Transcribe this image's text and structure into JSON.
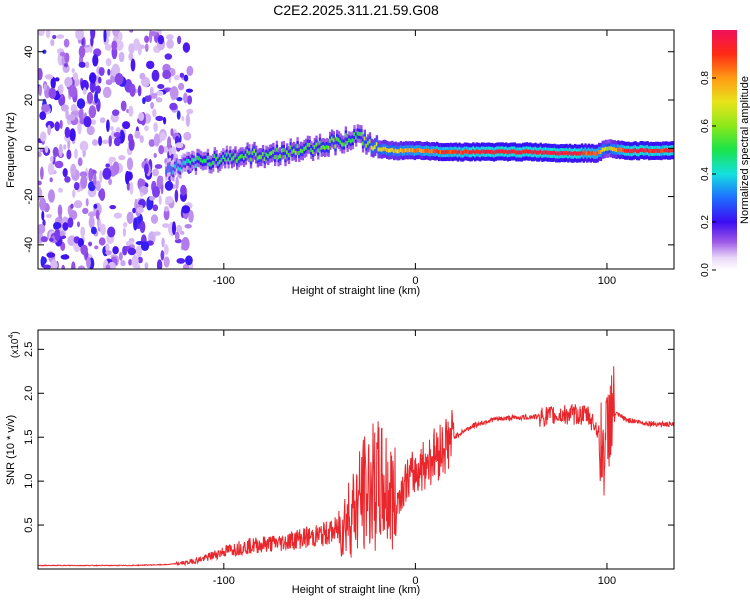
{
  "title": "C2E2.2025.311.21.59.G08",
  "colors": {
    "axis": "#000000",
    "snr_line": "#e8262b",
    "background": "#ffffff"
  },
  "chart_data": [
    {
      "type": "heatmap",
      "name": "spectrogram",
      "xlabel": "Height of straight line (km)",
      "ylabel": "Frequency (Hz)",
      "xlim": [
        -197,
        135
      ],
      "ylim": [
        -50,
        49
      ],
      "xticks": [
        -100,
        0,
        100
      ],
      "yticks": [
        -40,
        -20,
        0,
        20,
        40
      ],
      "colorbar": {
        "label": "Normalized spectral amplitude",
        "range": [
          0.0,
          1.0
        ],
        "ticks": [
          0.0,
          0.2,
          0.4,
          0.6,
          0.8
        ],
        "tick_labels": [
          "0.0",
          "0.2",
          "0.4",
          "0.6",
          "0.8"
        ]
      },
      "trace": {
        "description": "frequency ridge vs height",
        "x": [
          -130,
          -115,
          -100,
          -85,
          -70,
          -55,
          -40,
          -30,
          -22,
          -10,
          0,
          20,
          40,
          60,
          80,
          95,
          100,
          110,
          135
        ],
        "freq": [
          -9,
          -6,
          -4,
          -3,
          -2,
          0,
          3,
          5,
          0,
          -1,
          -1,
          -1.5,
          -1.5,
          -1.5,
          -2,
          -2,
          0,
          -1,
          -1
        ],
        "amplitude": [
          0.3,
          0.45,
          0.5,
          0.55,
          0.55,
          0.55,
          0.55,
          0.5,
          0.7,
          0.75,
          0.8,
          0.9,
          0.95,
          0.95,
          0.95,
          0.85,
          0.6,
          0.95,
          0.9
        ]
      },
      "noise_region_x": [
        -197,
        -125
      ]
    },
    {
      "type": "line",
      "name": "snr",
      "xlabel": "Height of straight line (km)",
      "ylabel": "SNR (10 * v/v)",
      "yscale_label": "(x10",
      "yscale_exp": "4",
      "xlim": [
        -197,
        135
      ],
      "ylim": [
        0.0,
        2.72
      ],
      "xticks": [
        -100,
        0,
        100
      ],
      "yticks": [
        0.5,
        1.0,
        1.5,
        2.0,
        2.5
      ],
      "ytick_labels": [
        "0.5",
        "1.0",
        "1.5",
        "2.0",
        "2.5"
      ],
      "series": [
        {
          "name": "SNR",
          "x": [
            -197,
            -150,
            -130,
            -120,
            -110,
            -100,
            -90,
            -80,
            -70,
            -60,
            -50,
            -40,
            -35,
            -30,
            -25,
            -20,
            -15,
            -10,
            -5,
            0,
            10,
            20,
            30,
            40,
            50,
            60,
            70,
            80,
            90,
            95,
            98,
            100,
            102,
            110,
            120,
            135
          ],
          "y": [
            0.04,
            0.04,
            0.05,
            0.07,
            0.12,
            0.2,
            0.25,
            0.28,
            0.3,
            0.35,
            0.38,
            0.45,
            0.6,
            0.75,
            0.9,
            0.95,
            0.9,
            0.75,
            1.0,
            1.1,
            1.3,
            1.5,
            1.63,
            1.7,
            1.72,
            1.73,
            1.74,
            1.76,
            1.75,
            1.6,
            1.3,
            1.5,
            1.8,
            1.7,
            1.66,
            1.64
          ]
        }
      ]
    }
  ]
}
